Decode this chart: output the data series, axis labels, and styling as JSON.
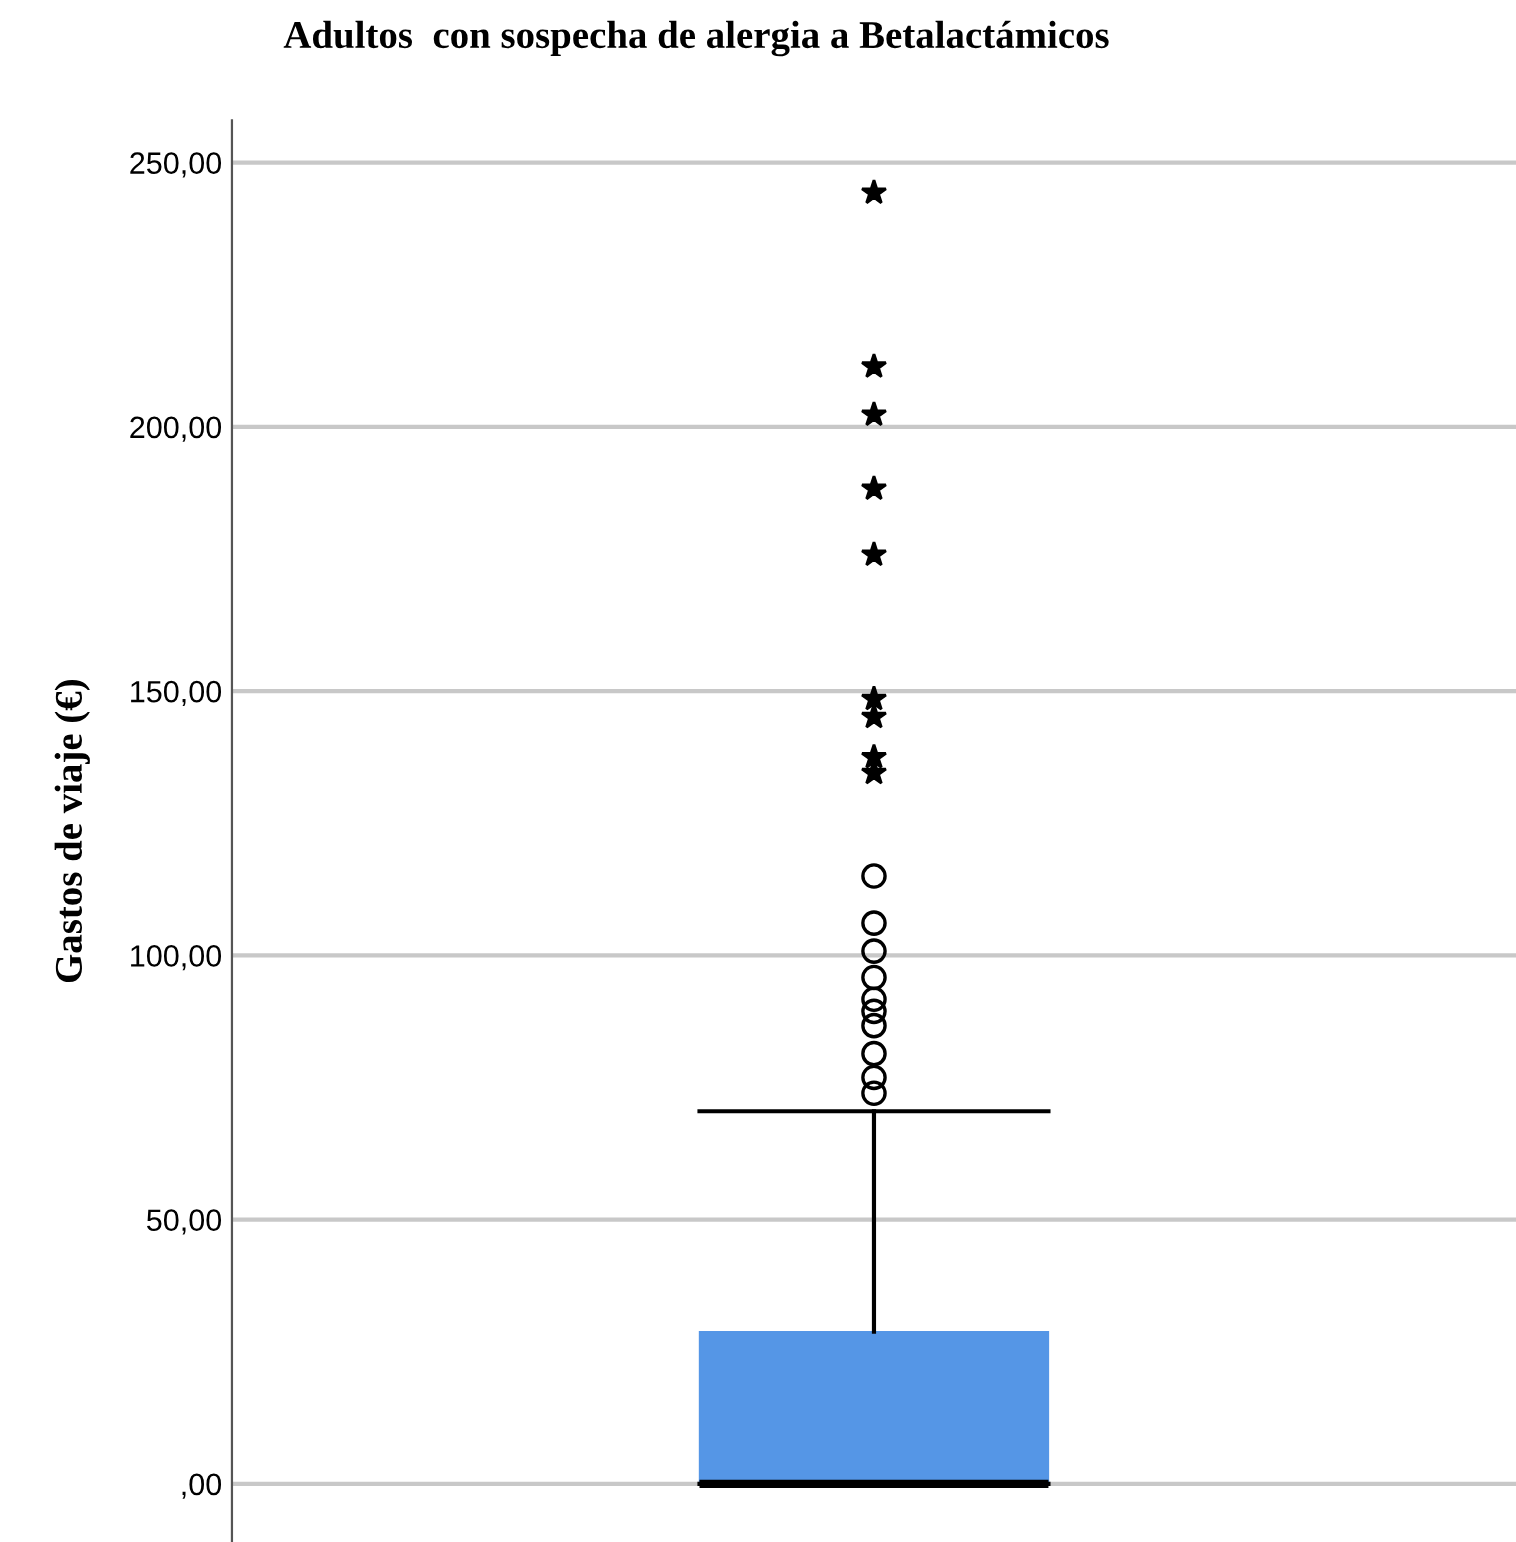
{
  "chart_data": {
    "type": "box",
    "title": "Adultos  con sospecha de alergia a Betalactámicos",
    "ylabel": "Gastos de viaje (€)",
    "categories": [
      null
    ],
    "series": [
      {
        "color": "#5596e6",
        "boxes": [
          {
            "low": 0,
            "q1": 0,
            "median": 0,
            "q3": 28.8,
            "high": 70.5,
            "outliers": [
              73.9,
              76.9,
              81.4,
              86.7,
              89.4,
              91.7,
              95.8,
              100.8,
              106.1,
              115,
              134.5,
              137.5,
              145.1,
              148.5,
              175.8,
              188.3,
              202.3,
              211.4,
              244.3
            ]
          }
        ]
      }
    ],
    "ylim": [
      -11,
      258
    ],
    "yticks": [
      {
        "value": 0,
        "label": ",00"
      },
      {
        "value": 50,
        "label": "50,00"
      },
      {
        "value": 100,
        "label": "100,00"
      },
      {
        "value": 150,
        "label": "150,00"
      },
      {
        "value": 200,
        "label": "200,00"
      },
      {
        "value": 250,
        "label": "250,00"
      }
    ],
    "grid": "y",
    "tick_labels": "y"
  }
}
